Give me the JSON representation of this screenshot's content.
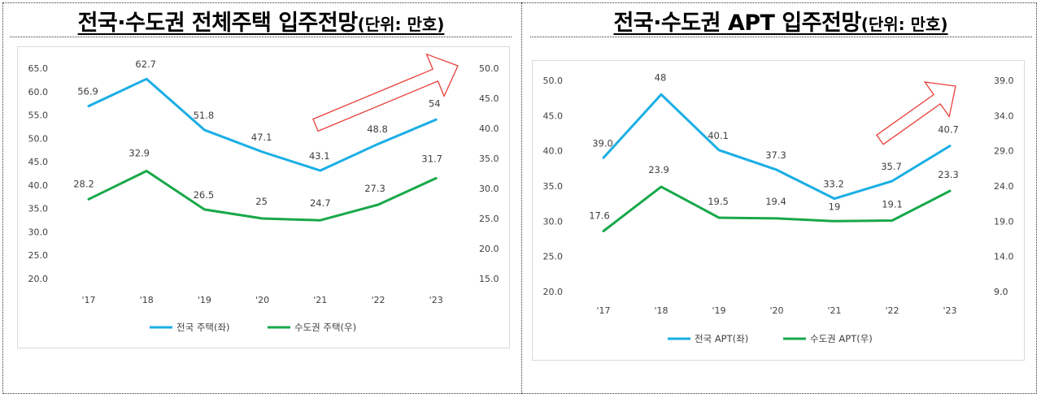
{
  "headings": [
    {
      "main": "전국·수도권  전체주택  입주전망",
      "unit": "(단위: 만호)"
    },
    {
      "main": "전국·수도권  APT  입주전망",
      "unit": "(단위: 만호)"
    }
  ],
  "chart_data": [
    {
      "type": "line",
      "categories": [
        "'17",
        "'18",
        "'19",
        "'20",
        "'21",
        "'22",
        "'23"
      ],
      "series": [
        {
          "name": "전국 주택(좌)",
          "axis": "left",
          "color": "#1aaee5",
          "values": [
            56.9,
            62.7,
            51.8,
            47.1,
            43.1,
            48.8,
            54
          ],
          "labels": [
            "56.9",
            "62.7",
            "51.8",
            "47.1",
            "43.1",
            "48.8",
            "54"
          ]
        },
        {
          "name": "수도권 주택(우)",
          "axis": "right",
          "color": "#18a84a",
          "values": [
            28.2,
            32.9,
            26.5,
            25,
            24.7,
            27.3,
            31.7
          ],
          "labels": [
            "28.2",
            "32.9",
            "26.5",
            "25",
            "24.7",
            "27.3",
            "31.7"
          ]
        }
      ],
      "y_left": {
        "min": 20,
        "max": 65,
        "step": 5,
        "ticks": [
          "65.0",
          "60.0",
          "55.0",
          "50.0",
          "45.0",
          "40.0",
          "35.0",
          "30.0",
          "25.0",
          "20.0"
        ]
      },
      "y_right": {
        "min": 15,
        "max": 50,
        "step": 5,
        "ticks": [
          "50.0",
          "45.0",
          "40.0",
          "35.0",
          "30.0",
          "25.0",
          "20.0",
          "15.0"
        ]
      },
      "legend_position": "bottom",
      "arrow_color": "#e8403a"
    },
    {
      "type": "line",
      "categories": [
        "'17",
        "'18",
        "'19",
        "'20",
        "'21",
        "'22",
        "'23"
      ],
      "series": [
        {
          "name": "전국 APT(좌)",
          "axis": "left",
          "color": "#1aaee5",
          "values": [
            39.0,
            48,
            40.1,
            37.3,
            33.2,
            35.7,
            40.7
          ],
          "labels": [
            "39.0",
            "48",
            "40.1",
            "37.3",
            "33.2",
            "35.7",
            "40.7"
          ]
        },
        {
          "name": "수도권 APT(우)",
          "axis": "right",
          "color": "#18a84a",
          "values": [
            17.6,
            23.9,
            19.5,
            19.4,
            19,
            19.1,
            23.3
          ],
          "labels": [
            "17.6",
            "23.9",
            "19.5",
            "19.4",
            "19",
            "19.1",
            "23.3"
          ]
        }
      ],
      "y_left": {
        "min": 20,
        "max": 50,
        "step": 5,
        "ticks": [
          "50.0",
          "45.0",
          "40.0",
          "35.0",
          "30.0",
          "25.0",
          "20.0"
        ]
      },
      "y_right": {
        "min": 9,
        "max": 39,
        "step": 5,
        "ticks": [
          "39.0",
          "34.0",
          "29.0",
          "24.0",
          "19.0",
          "14.0",
          "9.0"
        ]
      },
      "legend_position": "bottom",
      "arrow_color": "#e8403a"
    }
  ]
}
